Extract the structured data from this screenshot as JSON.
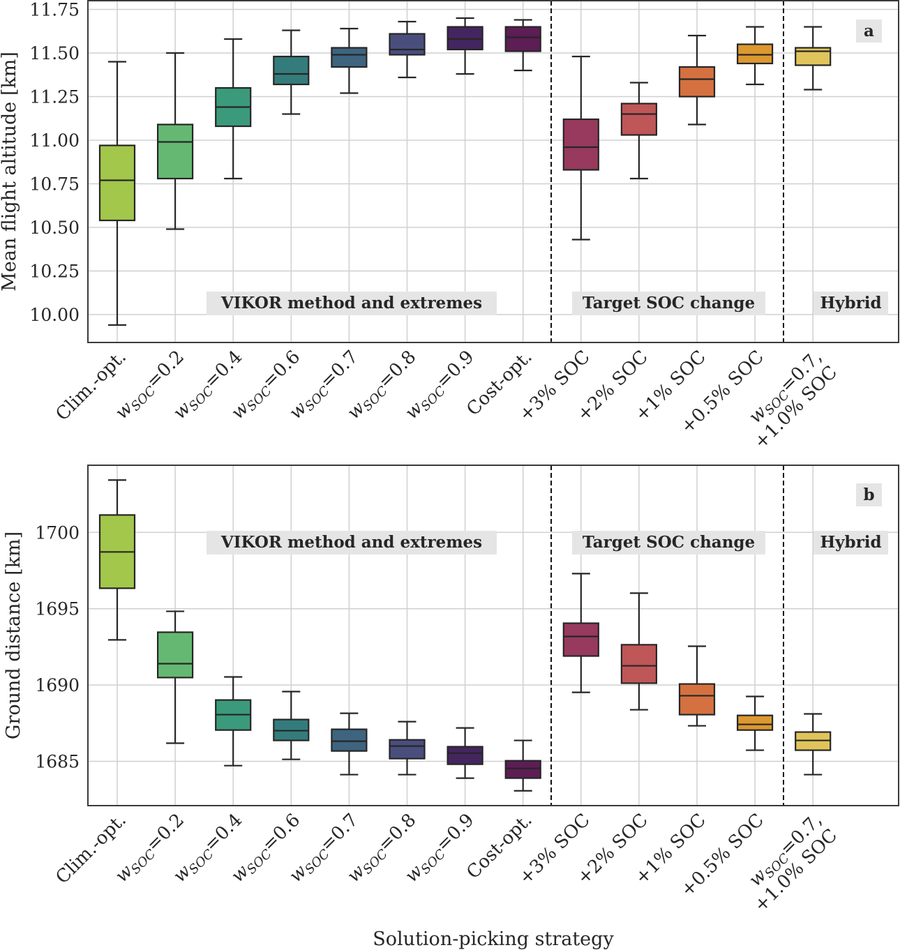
{
  "chart_data": [
    {
      "type": "box",
      "panel_label": "a",
      "title": "",
      "xlabel": "",
      "ylabel": "Mean flight altitude [km]",
      "ylim": [
        9.84,
        11.8
      ],
      "yticks": [
        10.0,
        10.25,
        10.5,
        10.75,
        11.0,
        11.25,
        11.5,
        11.75
      ],
      "ytick_labels": [
        "10.00",
        "10.25",
        "10.50",
        "10.75",
        "11.00",
        "11.25",
        "11.50",
        "11.75"
      ],
      "grid": true,
      "group_labels": [
        {
          "text": "VIKOR method and extremes",
          "placement": "bottom-left section"
        },
        {
          "text": "Target SOC change",
          "placement": "bottom-middle section"
        },
        {
          "text": "Hybrid",
          "placement": "bottom-right section"
        }
      ],
      "separators_after_category_index": [
        7,
        11
      ],
      "boxes": [
        {
          "whisker_low": 9.94,
          "q1": 10.54,
          "median": 10.77,
          "q3": 10.97,
          "whisker_high": 11.45
        },
        {
          "whisker_low": 10.49,
          "q1": 10.78,
          "median": 10.99,
          "q3": 11.09,
          "whisker_high": 11.5
        },
        {
          "whisker_low": 10.78,
          "q1": 11.08,
          "median": 11.19,
          "q3": 11.3,
          "whisker_high": 11.58
        },
        {
          "whisker_low": 11.15,
          "q1": 11.32,
          "median": 11.38,
          "q3": 11.48,
          "whisker_high": 11.63
        },
        {
          "whisker_low": 11.27,
          "q1": 11.42,
          "median": 11.49,
          "q3": 11.53,
          "whisker_high": 11.64
        },
        {
          "whisker_low": 11.36,
          "q1": 11.49,
          "median": 11.52,
          "q3": 11.61,
          "whisker_high": 11.68
        },
        {
          "whisker_low": 11.38,
          "q1": 11.52,
          "median": 11.58,
          "q3": 11.65,
          "whisker_high": 11.7
        },
        {
          "whisker_low": 11.4,
          "q1": 11.51,
          "median": 11.59,
          "q3": 11.65,
          "whisker_high": 11.69
        },
        {
          "whisker_low": 10.43,
          "q1": 10.83,
          "median": 10.96,
          "q3": 11.12,
          "whisker_high": 11.48
        },
        {
          "whisker_low": 10.78,
          "q1": 11.03,
          "median": 11.15,
          "q3": 11.21,
          "whisker_high": 11.33
        },
        {
          "whisker_low": 11.09,
          "q1": 11.25,
          "median": 11.35,
          "q3": 11.42,
          "whisker_high": 11.6
        },
        {
          "whisker_low": 11.32,
          "q1": 11.44,
          "median": 11.49,
          "q3": 11.55,
          "whisker_high": 11.65
        },
        {
          "whisker_low": 11.29,
          "q1": 11.43,
          "median": 11.51,
          "q3": 11.53,
          "whisker_high": 11.65
        }
      ]
    },
    {
      "type": "box",
      "panel_label": "b",
      "title": "",
      "xlabel": "Solution-picking strategy",
      "ylabel": "Ground distance [km]",
      "ylim": [
        1682.1,
        1704.4
      ],
      "yticks": [
        1685,
        1690,
        1695,
        1700
      ],
      "ytick_labels": [
        "1685",
        "1690",
        "1695",
        "1700"
      ],
      "grid": true,
      "group_labels": [
        {
          "text": "VIKOR method and extremes",
          "placement": "top-left section"
        },
        {
          "text": "Target SOC change",
          "placement": "top-middle section"
        },
        {
          "text": "Hybrid",
          "placement": "top-right section"
        }
      ],
      "separators_after_category_index": [
        7,
        11
      ],
      "boxes": [
        {
          "whisker_low": 1692.96,
          "q1": 1696.34,
          "median": 1698.72,
          "q3": 1701.14,
          "whisker_high": 1703.43
        },
        {
          "whisker_low": 1686.19,
          "q1": 1690.49,
          "median": 1691.4,
          "q3": 1693.46,
          "whisker_high": 1694.83
        },
        {
          "whisker_low": 1684.72,
          "q1": 1687.05,
          "median": 1688.06,
          "q3": 1689.02,
          "whisker_high": 1690.53
        },
        {
          "whisker_low": 1685.13,
          "q1": 1686.37,
          "median": 1687.01,
          "q3": 1687.74,
          "whisker_high": 1689.57
        },
        {
          "whisker_low": 1684.13,
          "q1": 1685.68,
          "median": 1686.32,
          "q3": 1687.1,
          "whisker_high": 1688.15
        },
        {
          "whisker_low": 1684.13,
          "q1": 1685.18,
          "median": 1686.0,
          "q3": 1686.41,
          "whisker_high": 1687.6
        },
        {
          "whisker_low": 1683.9,
          "q1": 1684.81,
          "median": 1685.54,
          "q3": 1685.96,
          "whisker_high": 1687.19
        },
        {
          "whisker_low": 1683.07,
          "q1": 1683.9,
          "median": 1684.54,
          "q3": 1685.04,
          "whisker_high": 1686.37
        },
        {
          "whisker_low": 1689.52,
          "q1": 1691.9,
          "median": 1693.18,
          "q3": 1694.05,
          "whisker_high": 1697.3
        },
        {
          "whisker_low": 1688.38,
          "q1": 1690.12,
          "median": 1691.26,
          "q3": 1692.64,
          "whisker_high": 1696.02
        },
        {
          "whisker_low": 1687.33,
          "q1": 1688.06,
          "median": 1689.3,
          "q3": 1690.07,
          "whisker_high": 1692.54
        },
        {
          "whisker_low": 1685.73,
          "q1": 1687.05,
          "median": 1687.42,
          "q3": 1688.01,
          "whisker_high": 1689.25
        },
        {
          "whisker_low": 1684.13,
          "q1": 1685.73,
          "median": 1686.37,
          "q3": 1686.92,
          "whisker_high": 1688.11
        }
      ]
    }
  ],
  "categories": [
    {
      "text": "Clim.-opt."
    },
    {
      "w": "w",
      "sub": "SOC",
      "rest": "=0.2"
    },
    {
      "w": "w",
      "sub": "SOC",
      "rest": "=0.4"
    },
    {
      "w": "w",
      "sub": "SOC",
      "rest": "=0.6"
    },
    {
      "w": "w",
      "sub": "SOC",
      "rest": "=0.7"
    },
    {
      "w": "w",
      "sub": "SOC",
      "rest": "=0.8"
    },
    {
      "w": "w",
      "sub": "SOC",
      "rest": "=0.9"
    },
    {
      "text": "Cost-opt."
    },
    {
      "text": "+3% SOC"
    },
    {
      "text": "+2% SOC"
    },
    {
      "text": "+1% SOC"
    },
    {
      "text": "+0.5% SOC"
    },
    {
      "w": "w",
      "sub": "SOC",
      "rest": "=0.7,",
      "line2": "+1.0% SOC"
    }
  ],
  "colors": [
    "#a2c74b",
    "#65b871",
    "#3b9a7b",
    "#347c7b",
    "#3e647f",
    "#4a4e7d",
    "#45255f",
    "#5d1d55",
    "#973a5d",
    "#bf5658",
    "#d57140",
    "#dd982f",
    "#e0c45b"
  ],
  "style": {
    "edge_color": "#262626",
    "grid_color": "#d0d0d0",
    "label_box_color": "#e5e5e5",
    "separator_color": "#111111"
  }
}
